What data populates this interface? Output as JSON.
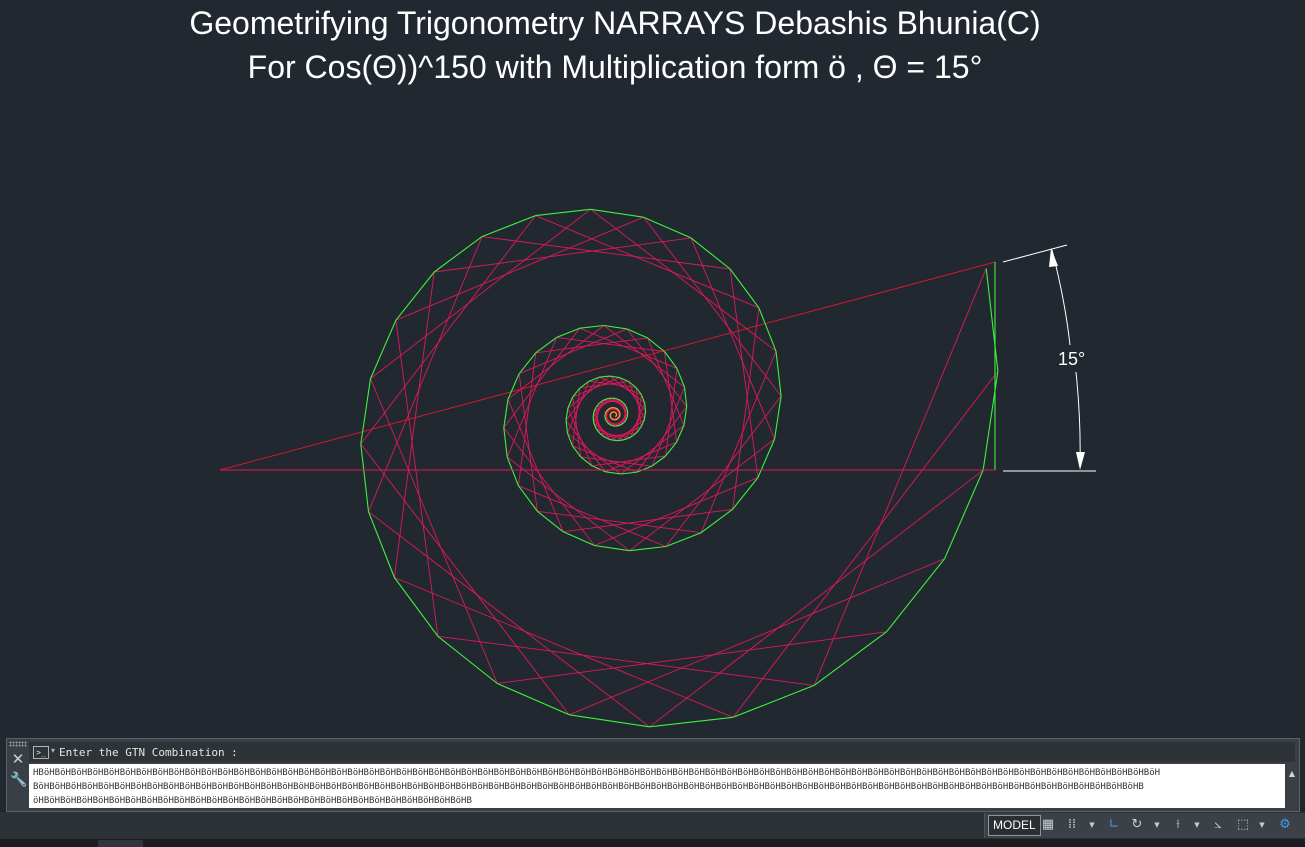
{
  "title": {
    "line1": "Geometrifying Trigonometry NARRAYS Debashis Bhunia(C)",
    "line2": "For Cos(Θ))^150 with Multiplication form ö , Θ = 15°"
  },
  "dimension_label": "15°",
  "colors": {
    "background": "#212830",
    "polygon_outline": "#3df23d",
    "star_lines": "#e0185a",
    "base_ray": "#d01a2a",
    "dimension": "#ffffff"
  },
  "command_line": {
    "prompt": "Enter the GTN Combination :",
    "input_line1": "HBöHBöHBöHBöHBöHBöHBöHBöHBöHBöHBöHBöHBöHBöHBöHBöHBöHBöHBöHBöHBöHBöHBöHBöHBöHBöHBöHBöHBöHBöHBöHBöHBöHBöHBöHBöHBöHBöHBöHBöHBöHBöHBöHBöHBöHBöHBöHBöHBöHBöHBöHBöHBöHBöHBöHBöHBöHBöHBöHBöHBöHBöHBöHBöHBöHBöHBöHBöHBöH",
    "input_line2": "BöHBöHBöHBöHBöHBöHBöHBöHBöHBöHBöHBöHBöHBöHBöHBöHBöHBöHBöHBöHBöHBöHBöHBöHBöHBöHBöHBöHBöHBöHBöHBöHBöHBöHBöHBöHBöHBöHBöHBöHBöHBöHBöHBöHBöHBöHBöHBöHBöHBöHBöHBöHBöHBöHBöHBöHBöHBöHBöHBöHBöHBöHBöHBöHBöHBöHBöHBöHB",
    "input_line3": "öHBöHBöHBöHBöHBöHBöHBöHBöHBöHBöHBöHBöHBöHBöHBöHBöHBöHBöHBöHBöHBöHBöHBöHBöHBöHBöHB"
  },
  "status_bar": {
    "model_label": "MODEL"
  },
  "icons": {
    "close": "close-icon",
    "customize": "wrench-icon",
    "prompt": "command-prompt-icon",
    "grid": "grid-icon",
    "snap": "snap-icon",
    "ortho": "ortho-icon",
    "polar": "polar-tracking-icon",
    "object_snap_tracking": "object-snap-tracking-icon",
    "isodraft": "isodraft-icon",
    "selection": "selection-cycling-icon",
    "workspace": "workspace-icon"
  }
}
